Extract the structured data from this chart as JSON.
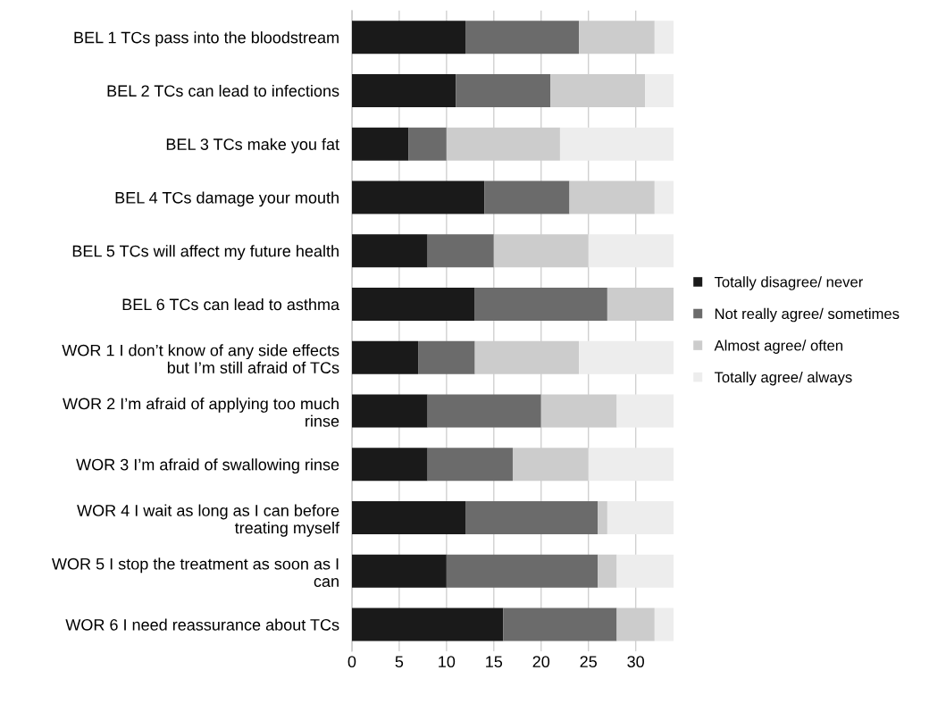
{
  "chart_data": {
    "type": "bar",
    "orientation": "horizontal",
    "stacked": true,
    "categories": [
      "BEL 1 TCs pass into the bloodstream",
      "BEL 2 TCs can lead to infections",
      "BEL 3 TCs make you fat",
      "BEL 4 TCs damage your mouth",
      "BEL 5 TCs will affect my future health",
      "BEL 6 TCs can lead to asthma",
      "WOR 1 I don’t know of any side effects\nbut I’m still afraid of TCs",
      "WOR 2 I’m afraid of applying too much\nrinse",
      "WOR 3 I’m afraid of swallowing rinse",
      "WOR 4 I wait as long as I can before\ntreating myself",
      "WOR 5 I stop the treatment as soon as I\ncan",
      "WOR 6 I need reassurance about TCs"
    ],
    "series": [
      {
        "name": "Totally disagree/ never",
        "color": "#1a1a1a",
        "values": [
          12,
          11,
          6,
          14,
          8,
          13,
          7,
          8,
          8,
          12,
          10,
          16
        ]
      },
      {
        "name": "Not really agree/ sometimes",
        "color": "#6b6b6b",
        "values": [
          12,
          10,
          4,
          9,
          7,
          14,
          6,
          12,
          9,
          14,
          16,
          12
        ]
      },
      {
        "name": "Almost agree/ often",
        "color": "#cccccc",
        "values": [
          8,
          10,
          12,
          9,
          10,
          7,
          11,
          8,
          8,
          1,
          2,
          4
        ]
      },
      {
        "name": "Totally agree/ always",
        "color": "#ededed",
        "values": [
          2,
          3,
          12,
          2,
          9,
          0,
          10,
          6,
          9,
          7,
          6,
          2
        ]
      }
    ],
    "xlim": [
      0,
      34
    ],
    "xticks": [
      0,
      5,
      10,
      15,
      20,
      25,
      30
    ],
    "grid": "x",
    "legend": "right"
  }
}
